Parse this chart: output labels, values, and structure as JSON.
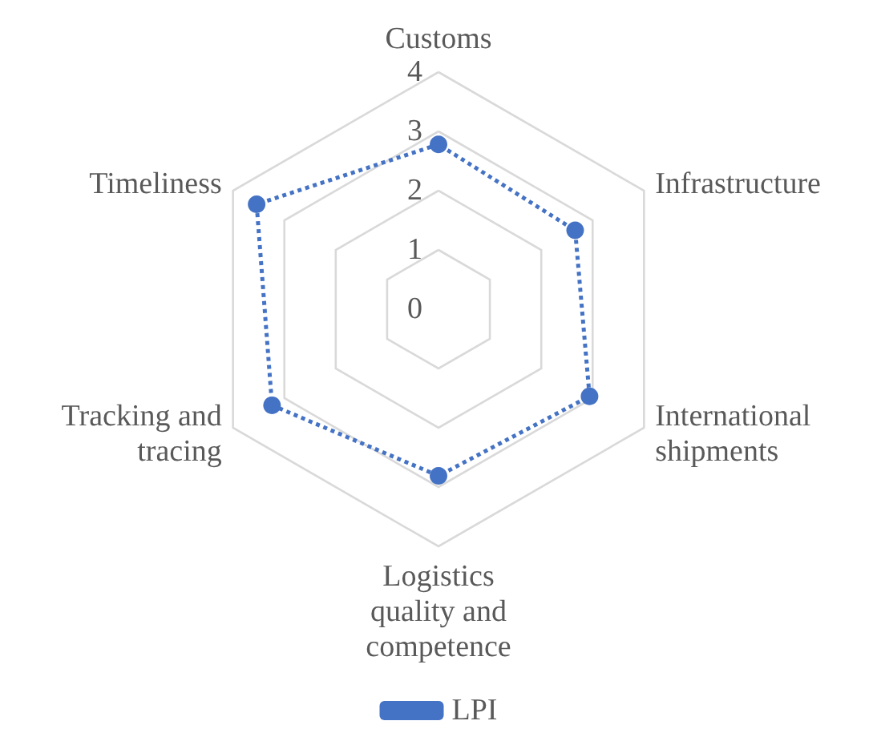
{
  "chart_data": {
    "type": "radar",
    "categories": [
      "Customs",
      "Infrastructure",
      "International\nshipments",
      "Logistics\nquality and\ncompetence",
      "Tracking and\ntracing",
      "Timeliness"
    ],
    "series": [
      {
        "name": "LPI",
        "color": "#4472c4",
        "values": [
          2.78,
          2.66,
          2.94,
          2.81,
          3.24,
          3.54
        ]
      }
    ],
    "ylim": [
      0,
      4
    ],
    "yticks": [
      0,
      1,
      2,
      3,
      4
    ],
    "legend": "bottom",
    "marker": "circle",
    "line_style": "dotted"
  }
}
